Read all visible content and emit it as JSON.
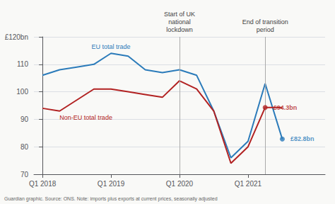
{
  "chart_data": {
    "type": "line",
    "x": [
      0,
      1,
      2,
      3,
      4,
      5,
      6,
      7,
      8,
      9,
      10,
      11,
      12,
      13,
      14
    ],
    "series": [
      {
        "name": "EU total trade",
        "color": "#2b7bba",
        "values": [
          106,
          108,
          109,
          110,
          114,
          113,
          108,
          107,
          108,
          106,
          93,
          76,
          82,
          103,
          82.8
        ]
      },
      {
        "name": "Non-EU total trade",
        "color": "#b22222",
        "values": [
          94,
          93,
          97,
          101,
          101,
          100,
          99,
          98,
          104,
          101,
          93,
          74,
          80,
          94.3,
          94.3
        ]
      }
    ],
    "xlim": [
      -0.5,
      16.5
    ],
    "xticks": [
      {
        "value": 0,
        "label": "Q1 2018"
      },
      {
        "value": 4,
        "label": "Q1 2019"
      },
      {
        "value": 8,
        "label": "Q1 2020"
      },
      {
        "value": 12,
        "label": "Q1 2021"
      }
    ],
    "ylim": [
      70,
      120
    ],
    "yticks": [
      70,
      80,
      90,
      100,
      110,
      {
        "value": 120,
        "label": "£120bn"
      }
    ],
    "grid": true,
    "annotations": [
      {
        "text": "£94.3bn",
        "x": 13,
        "y": 94.3,
        "series": "Non-EU total trade"
      },
      {
        "text": "£82.8bn",
        "x": 14,
        "y": 82.8,
        "series": "EU total trade"
      },
      {
        "text": "Start of UK\nnational\nlockdown",
        "x": 8
      },
      {
        "text": "End of transition\nperiod",
        "x": 13
      }
    ],
    "caption": "Guardian graphic. Source: ONS. Note: imports plus exports at current prices, seasonally adjusted"
  }
}
